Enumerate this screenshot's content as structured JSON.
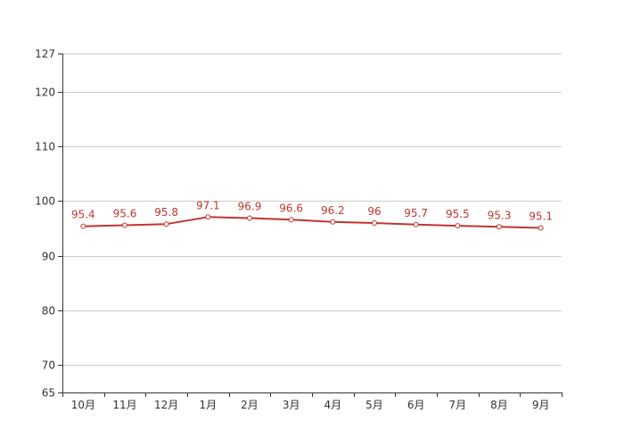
{
  "chart_data": {
    "type": "line",
    "categories": [
      "10月",
      "11月",
      "12月",
      "1月",
      "2月",
      "3月",
      "4月",
      "5月",
      "6月",
      "7月",
      "8月",
      "9月"
    ],
    "series": [
      {
        "values": [
          95.4,
          95.6,
          95.8,
          97.1,
          96.9,
          96.6,
          96.2,
          96,
          95.7,
          95.5,
          95.3,
          95.1
        ]
      }
    ],
    "data_labels": [
      "95.4",
      "95.6",
      "95.8",
      "97.1",
      "96.9",
      "96.6",
      "96.2",
      "96",
      "95.7",
      "95.5",
      "95.3",
      "95.1"
    ],
    "y_ticks": [
      65,
      70,
      80,
      90,
      100,
      110,
      120,
      127
    ],
    "ylim": [
      65,
      127
    ],
    "grid": true,
    "legend": false,
    "colors": {
      "line": "#c23531",
      "grid": "#cccccc",
      "axis": "#333333",
      "label": "#c23531"
    }
  }
}
